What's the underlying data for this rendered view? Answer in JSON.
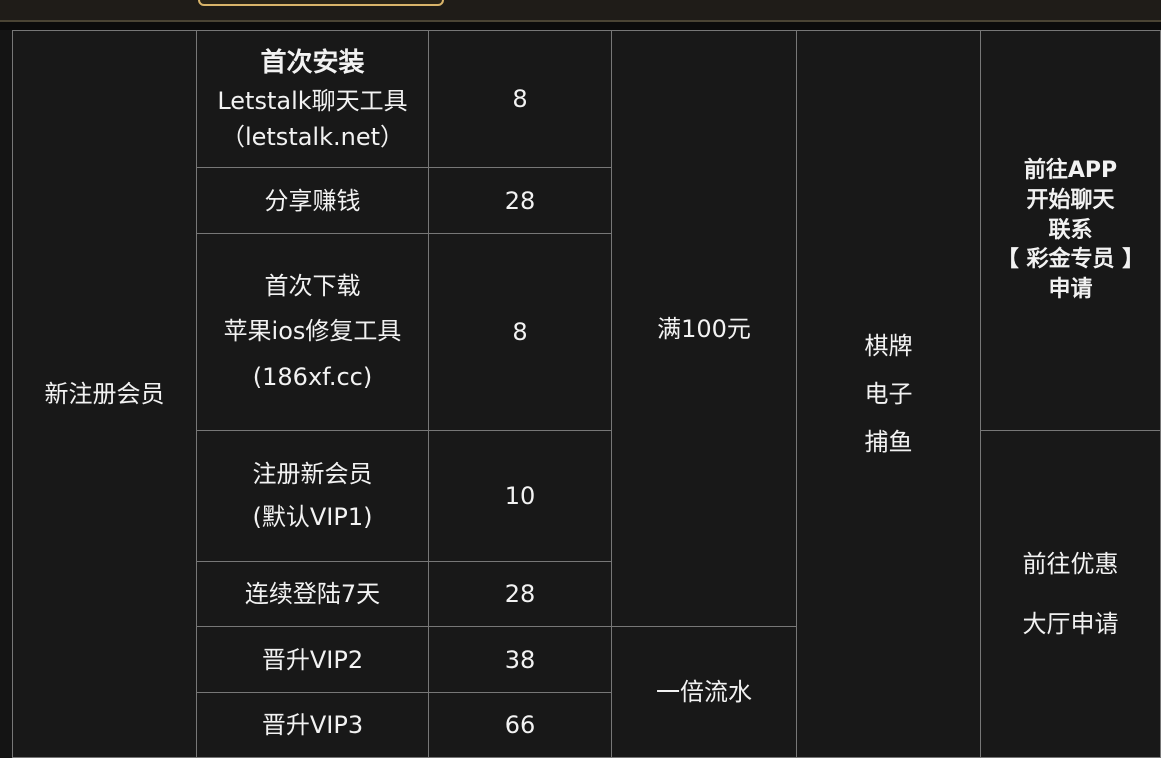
{
  "table": {
    "category": "新注册会员",
    "items": [
      {
        "lines": [
          "首次安装",
          "Letstalk聊天工具",
          "（letstalk.net）"
        ],
        "amount": "8"
      },
      {
        "lines": [
          "分享赚钱"
        ],
        "amount": "28"
      },
      {
        "lines": [
          "首次下载",
          "苹果ios修复工具",
          "(186xf.cc)"
        ],
        "amount": "8"
      },
      {
        "lines": [
          "注册新会员",
          "(默认VIP1)"
        ],
        "amount": "10"
      },
      {
        "lines": [
          "连续登陆7天"
        ],
        "amount": "28"
      },
      {
        "lines": [
          "晋升VIP2"
        ],
        "amount": "38"
      },
      {
        "lines": [
          "晋升VIP3"
        ],
        "amount": "66"
      }
    ],
    "requirement_1": "满100元",
    "requirement_2": "一倍流水",
    "games": [
      "棋牌",
      "电子",
      "捕鱼"
    ],
    "apply_1": [
      "前往APP",
      "开始聊天",
      "联系",
      "【 彩金专员 】",
      "申请"
    ],
    "apply_2": [
      "前往优惠",
      "大厅申请"
    ]
  }
}
